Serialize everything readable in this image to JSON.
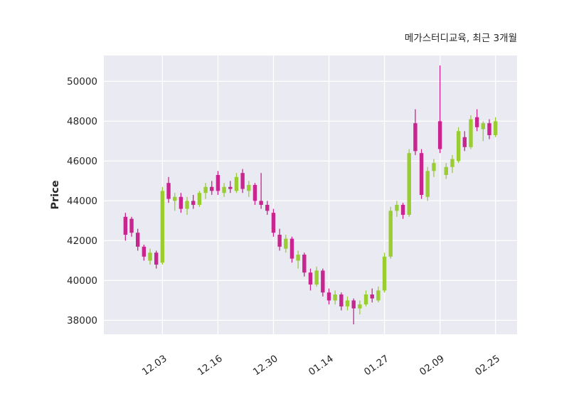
{
  "title": "메가스터디교육, 최근 3개월",
  "chart_data": {
    "type": "candlestick",
    "title": "메가스터디교육, 최근 3개월",
    "xlabel": "",
    "ylabel": "Price",
    "y_ticks": [
      38000,
      40000,
      42000,
      44000,
      46000,
      48000,
      50000
    ],
    "ylim": [
      37300,
      51300
    ],
    "x_ticks": [
      {
        "index": 6,
        "label": "12.03"
      },
      {
        "index": 15,
        "label": "12.16"
      },
      {
        "index": 24,
        "label": "12.30"
      },
      {
        "index": 33,
        "label": "01.14"
      },
      {
        "index": 42,
        "label": "01.27"
      },
      {
        "index": 51,
        "label": "02.09"
      },
      {
        "index": 60,
        "label": "02.25"
      }
    ],
    "grid": true,
    "legend": "none",
    "colors": {
      "up": "#9acd32",
      "down": "#c9258f",
      "plot_bg": "#eaeaf2",
      "grid": "#ffffff",
      "text": "#262626",
      "figure_bg": "#ffffff"
    },
    "candles_format": [
      "open",
      "high",
      "low",
      "close"
    ],
    "candles": [
      [
        43200,
        43400,
        42000,
        42300
      ],
      [
        43100,
        43200,
        42200,
        42400
      ],
      [
        42400,
        42600,
        41500,
        41700
      ],
      [
        41700,
        41800,
        41000,
        41200
      ],
      [
        41000,
        41600,
        40800,
        41400
      ],
      [
        41400,
        41500,
        40600,
        40800
      ],
      [
        40900,
        44700,
        40800,
        44500
      ],
      [
        44900,
        45200,
        43900,
        44100
      ],
      [
        44000,
        44400,
        43500,
        44200
      ],
      [
        44200,
        44400,
        43400,
        43600
      ],
      [
        43600,
        44200,
        43300,
        44000
      ],
      [
        44000,
        44300,
        43600,
        43800
      ],
      [
        43800,
        44500,
        43700,
        44400
      ],
      [
        44400,
        44900,
        44100,
        44700
      ],
      [
        44700,
        45000,
        44300,
        44500
      ],
      [
        45300,
        45500,
        44300,
        44500
      ],
      [
        44400,
        44900,
        44200,
        44700
      ],
      [
        44700,
        45000,
        44400,
        44600
      ],
      [
        44500,
        45400,
        44400,
        45200
      ],
      [
        45400,
        45600,
        44400,
        44600
      ],
      [
        44500,
        45000,
        44200,
        44800
      ],
      [
        44800,
        44900,
        43800,
        44000
      ],
      [
        44000,
        45400,
        43600,
        43800
      ],
      [
        43800,
        44000,
        43300,
        43500
      ],
      [
        43400,
        43600,
        42200,
        42400
      ],
      [
        42300,
        42600,
        41500,
        41700
      ],
      [
        41600,
        42300,
        41400,
        42100
      ],
      [
        42100,
        42200,
        40900,
        41100
      ],
      [
        41000,
        41500,
        40600,
        41300
      ],
      [
        41300,
        41400,
        40200,
        40400
      ],
      [
        40400,
        40600,
        39500,
        39800
      ],
      [
        39800,
        40700,
        39700,
        40500
      ],
      [
        40500,
        40600,
        39200,
        39400
      ],
      [
        39400,
        39600,
        38800,
        39000
      ],
      [
        39000,
        39500,
        38800,
        39300
      ],
      [
        39300,
        39400,
        38500,
        38700
      ],
      [
        38700,
        39200,
        38500,
        39000
      ],
      [
        39000,
        39100,
        37800,
        38600
      ],
      [
        38600,
        39000,
        38300,
        38800
      ],
      [
        38800,
        39500,
        38700,
        39300
      ],
      [
        39300,
        39600,
        38900,
        39100
      ],
      [
        39000,
        39700,
        38900,
        39500
      ],
      [
        39500,
        41400,
        39400,
        41200
      ],
      [
        41200,
        43700,
        41100,
        43500
      ],
      [
        43500,
        44000,
        43200,
        43800
      ],
      [
        43800,
        43900,
        43100,
        43300
      ],
      [
        43300,
        46600,
        43200,
        46400
      ],
      [
        47900,
        48600,
        46300,
        46500
      ],
      [
        46400,
        46600,
        44100,
        44300
      ],
      [
        44200,
        45700,
        44000,
        45500
      ],
      [
        45500,
        46100,
        45200,
        45900
      ],
      [
        48000,
        50800,
        46400,
        46600
      ],
      [
        45300,
        45900,
        45100,
        45700
      ],
      [
        45700,
        46300,
        45400,
        46100
      ],
      [
        46000,
        47700,
        45900,
        47500
      ],
      [
        47200,
        47500,
        46500,
        46700
      ],
      [
        46700,
        48300,
        46600,
        48100
      ],
      [
        48200,
        48600,
        47500,
        47700
      ],
      [
        47600,
        48000,
        47000,
        47900
      ],
      [
        47900,
        48100,
        47100,
        47300
      ],
      [
        47300,
        48200,
        47200,
        48000
      ]
    ]
  }
}
